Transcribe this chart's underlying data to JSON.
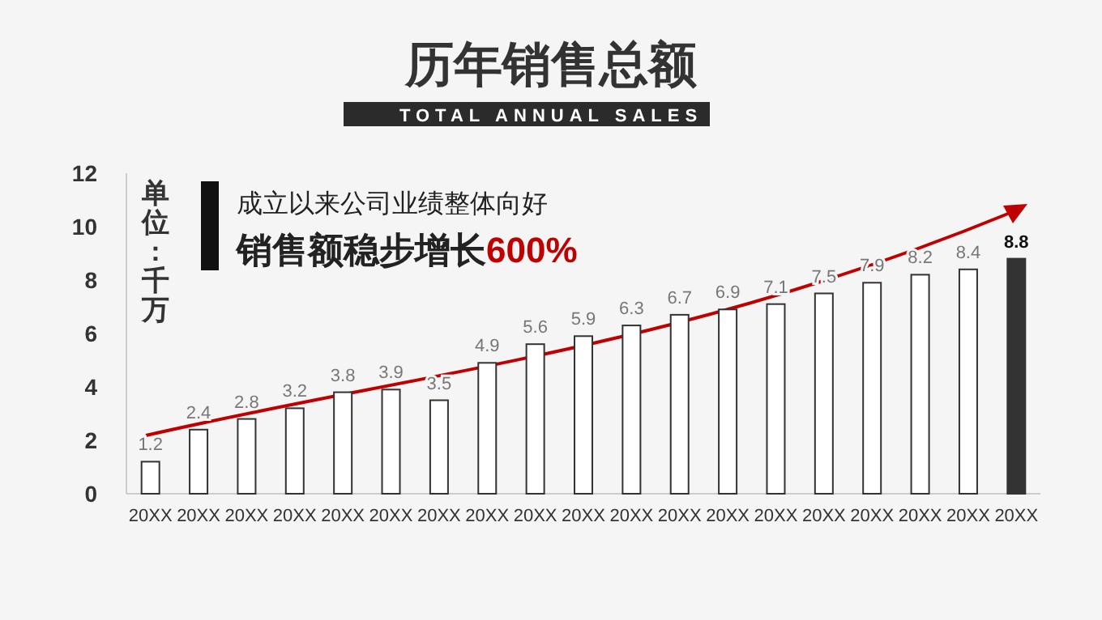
{
  "chart_data": {
    "type": "bar",
    "title": "历年销售总额",
    "subtitle": "TOTAL ANNUAL SALES",
    "ylabel": "单位:千万",
    "annotations": [
      "成立以来公司业绩整体向好",
      "销售额稳步增长600%"
    ],
    "categories": [
      "20XX",
      "20XX",
      "20XX",
      "20XX",
      "20XX",
      "20XX",
      "20XX",
      "20XX",
      "20XX",
      "20XX",
      "20XX",
      "20XX",
      "20XX",
      "20XX",
      "20XX",
      "20XX",
      "20XX",
      "20XX",
      "20XX"
    ],
    "values": [
      1.2,
      2.4,
      2.8,
      3.2,
      3.8,
      3.9,
      3.5,
      4.9,
      5.6,
      5.9,
      6.3,
      6.7,
      6.9,
      7.1,
      7.5,
      7.9,
      8.2,
      8.4,
      8.8
    ],
    "colors": [
      "#ffffff",
      "#ffffff",
      "#ffffff",
      "#ffffff",
      "#ffffff",
      "#ffffff",
      "#ffffff",
      "#ffffff",
      "#ffffff",
      "#ffffff",
      "#ffffff",
      "#ffffff",
      "#ffffff",
      "#ffffff",
      "#ffffff",
      "#ffffff",
      "#ffffff",
      "#ffffff",
      "#333333"
    ],
    "ylim": [
      0,
      12
    ],
    "yticks": [
      0,
      2,
      4,
      6,
      8,
      10,
      12
    ],
    "data_labels": true,
    "grid": false
  }
}
